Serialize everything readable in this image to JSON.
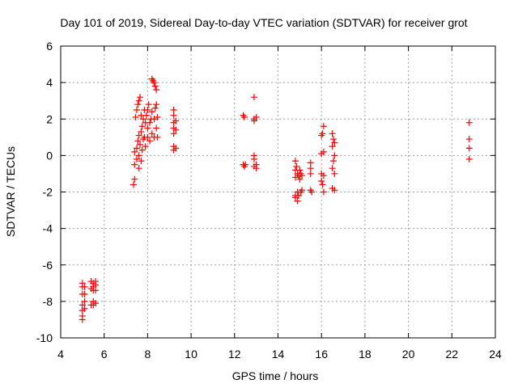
{
  "chart_data": {
    "type": "scatter",
    "title": "Day 101 of 2019, Sidereal Day-to-day VTEC variation (SDTVAR) for receiver grot",
    "xlabel": "GPS time / hours",
    "ylabel": "SDTVAR / TECUs",
    "xlim": [
      4,
      24
    ],
    "ylim": [
      -10,
      6
    ],
    "xticks": [
      4,
      6,
      8,
      10,
      12,
      14,
      16,
      18,
      20,
      22,
      24
    ],
    "yticks": [
      -10,
      -8,
      -6,
      -4,
      -2,
      0,
      2,
      4,
      6
    ],
    "grid": true,
    "marker": "+",
    "colors": {
      "series": "#ff0000",
      "axes": "#000000",
      "grid": "#a0a0a0"
    },
    "series": [
      {
        "name": "SDTVAR",
        "points": [
          [
            5.0,
            -7.0
          ],
          [
            5.0,
            -7.2
          ],
          [
            5.0,
            -7.6
          ],
          [
            5.0,
            -8.2
          ],
          [
            5.0,
            -8.5
          ],
          [
            5.0,
            -8.8
          ],
          [
            5.0,
            -9.0
          ],
          [
            5.1,
            -7.2
          ],
          [
            5.1,
            -7.6
          ],
          [
            5.1,
            -8.0
          ],
          [
            5.1,
            -8.4
          ],
          [
            5.4,
            -6.9
          ],
          [
            5.4,
            -7.3
          ],
          [
            5.4,
            -8.2
          ],
          [
            5.5,
            -7.0
          ],
          [
            5.5,
            -7.2
          ],
          [
            5.5,
            -7.4
          ],
          [
            5.5,
            -8.0
          ],
          [
            5.5,
            -8.2
          ],
          [
            5.6,
            -6.9
          ],
          [
            5.6,
            -7.1
          ],
          [
            5.6,
            -7.4
          ],
          [
            5.6,
            -8.1
          ],
          [
            7.35,
            -1.6
          ],
          [
            7.4,
            -1.3
          ],
          [
            7.4,
            -0.5
          ],
          [
            7.4,
            0.2
          ],
          [
            7.45,
            2.1
          ],
          [
            7.5,
            -0.2
          ],
          [
            7.5,
            0.4
          ],
          [
            7.5,
            2.5
          ],
          [
            7.55,
            0.8
          ],
          [
            7.55,
            2.8
          ],
          [
            7.6,
            -0.7
          ],
          [
            7.6,
            0.0
          ],
          [
            7.6,
            1.1
          ],
          [
            7.6,
            3.0
          ],
          [
            7.65,
            0.6
          ],
          [
            7.65,
            3.2
          ],
          [
            7.7,
            -0.3
          ],
          [
            7.7,
            1.3
          ],
          [
            7.7,
            2.2
          ],
          [
            7.75,
            0.3
          ],
          [
            7.75,
            1.6
          ],
          [
            7.8,
            0.9
          ],
          [
            7.8,
            2.0
          ],
          [
            7.85,
            1.0
          ],
          [
            7.85,
            2.5
          ],
          [
            7.9,
            0.5
          ],
          [
            7.9,
            1.8
          ],
          [
            7.95,
            2.2
          ],
          [
            8.0,
            1.5
          ],
          [
            8.0,
            2.5
          ],
          [
            8.0,
            1.0
          ],
          [
            8.05,
            2.8
          ],
          [
            8.1,
            1.8
          ],
          [
            8.1,
            0.8
          ],
          [
            8.15,
            2.0
          ],
          [
            8.2,
            4.2
          ],
          [
            8.2,
            1.2
          ],
          [
            8.2,
            2.4
          ],
          [
            8.25,
            4.1
          ],
          [
            8.3,
            4.0
          ],
          [
            8.3,
            2.0
          ],
          [
            8.3,
            1.0
          ],
          [
            8.35,
            3.8
          ],
          [
            8.35,
            2.6
          ],
          [
            8.4,
            3.6
          ],
          [
            8.4,
            2.8
          ],
          [
            8.4,
            1.5
          ],
          [
            8.45,
            2.1
          ],
          [
            8.45,
            1.0
          ],
          [
            9.2,
            2.5
          ],
          [
            9.2,
            2.2
          ],
          [
            9.2,
            1.8
          ],
          [
            9.2,
            1.5
          ],
          [
            9.2,
            1.2
          ],
          [
            9.2,
            0.5
          ],
          [
            9.2,
            0.3
          ],
          [
            9.3,
            1.9
          ],
          [
            9.3,
            1.4
          ],
          [
            9.3,
            0.4
          ],
          [
            12.4,
            2.2
          ],
          [
            12.45,
            2.1
          ],
          [
            12.4,
            -0.5
          ],
          [
            12.45,
            -0.6
          ],
          [
            12.5,
            -0.5
          ],
          [
            12.9,
            3.2
          ],
          [
            12.9,
            2.0
          ],
          [
            12.9,
            1.9
          ],
          [
            12.9,
            0.0
          ],
          [
            12.9,
            -0.2
          ],
          [
            12.9,
            -0.6
          ],
          [
            13.0,
            2.1
          ],
          [
            13.0,
            -0.5
          ],
          [
            13.0,
            -0.7
          ],
          [
            14.8,
            -0.3
          ],
          [
            14.8,
            -0.8
          ],
          [
            14.8,
            -1.2
          ],
          [
            14.8,
            -2.2
          ],
          [
            14.8,
            -2.3
          ],
          [
            14.85,
            -0.6
          ],
          [
            14.9,
            -1.0
          ],
          [
            14.9,
            -2.0
          ],
          [
            14.9,
            -2.5
          ],
          [
            14.95,
            -1.1
          ],
          [
            14.95,
            -2.2
          ],
          [
            15.0,
            -0.8
          ],
          [
            15.0,
            -1.3
          ],
          [
            15.05,
            -1.0
          ],
          [
            15.05,
            -2.0
          ],
          [
            15.1,
            -1.1
          ],
          [
            15.1,
            -1.9
          ],
          [
            15.5,
            -0.4
          ],
          [
            15.5,
            -0.7
          ],
          [
            15.5,
            -1.0
          ],
          [
            15.5,
            -1.9
          ],
          [
            15.55,
            -2.0
          ],
          [
            16.0,
            1.1
          ],
          [
            16.0,
            0.1
          ],
          [
            16.0,
            -1.0
          ],
          [
            16.0,
            -1.4
          ],
          [
            16.05,
            1.2
          ],
          [
            16.05,
            -1.6
          ],
          [
            16.1,
            1.6
          ],
          [
            16.1,
            0.2
          ],
          [
            16.1,
            -1.1
          ],
          [
            16.1,
            -2.0
          ],
          [
            16.5,
            1.2
          ],
          [
            16.5,
            0.5
          ],
          [
            16.5,
            -0.7
          ],
          [
            16.5,
            -1.8
          ],
          [
            16.55,
            0.9
          ],
          [
            16.55,
            -0.3
          ],
          [
            16.6,
            0.7
          ],
          [
            16.6,
            0.0
          ],
          [
            16.6,
            -1.0
          ],
          [
            16.6,
            -1.9
          ],
          [
            22.8,
            1.8
          ],
          [
            22.8,
            0.9
          ],
          [
            22.8,
            0.4
          ],
          [
            22.8,
            -0.2
          ]
        ]
      }
    ]
  }
}
